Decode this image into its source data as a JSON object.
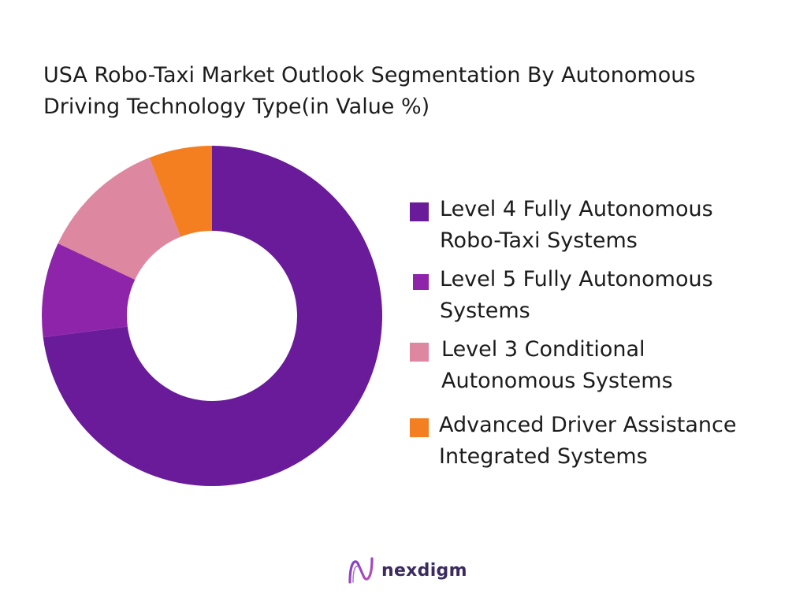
{
  "chart_data": {
    "type": "pie",
    "title_lines": [
      "USA Robo-Taxi Market Outlook Segmentation By Autonomous",
      "Driving Technology Type(in Value %)"
    ],
    "series": [
      {
        "label_lines": [
          "Level 4 Fully Autonomous",
          "Robo-Taxi Systems"
        ],
        "value": 73,
        "color": "#6a1b9a"
      },
      {
        "label_lines": [
          "Level 5 Fully Autonomous",
          "Systems"
        ],
        "value": 9,
        "color": "#8e24aa"
      },
      {
        "label_lines": [
          "Level 3 Conditional",
          "Autonomous Systems"
        ],
        "value": 12,
        "color": "#de87a1"
      },
      {
        "label_lines": [
          "Advanced Driver Assistance",
          "Integrated Systems"
        ],
        "value": 6,
        "color": "#f47f20"
      }
    ],
    "legend_position": "right"
  },
  "brand": {
    "name": "nexdigm",
    "icon": "nexdigm-logo-icon"
  }
}
